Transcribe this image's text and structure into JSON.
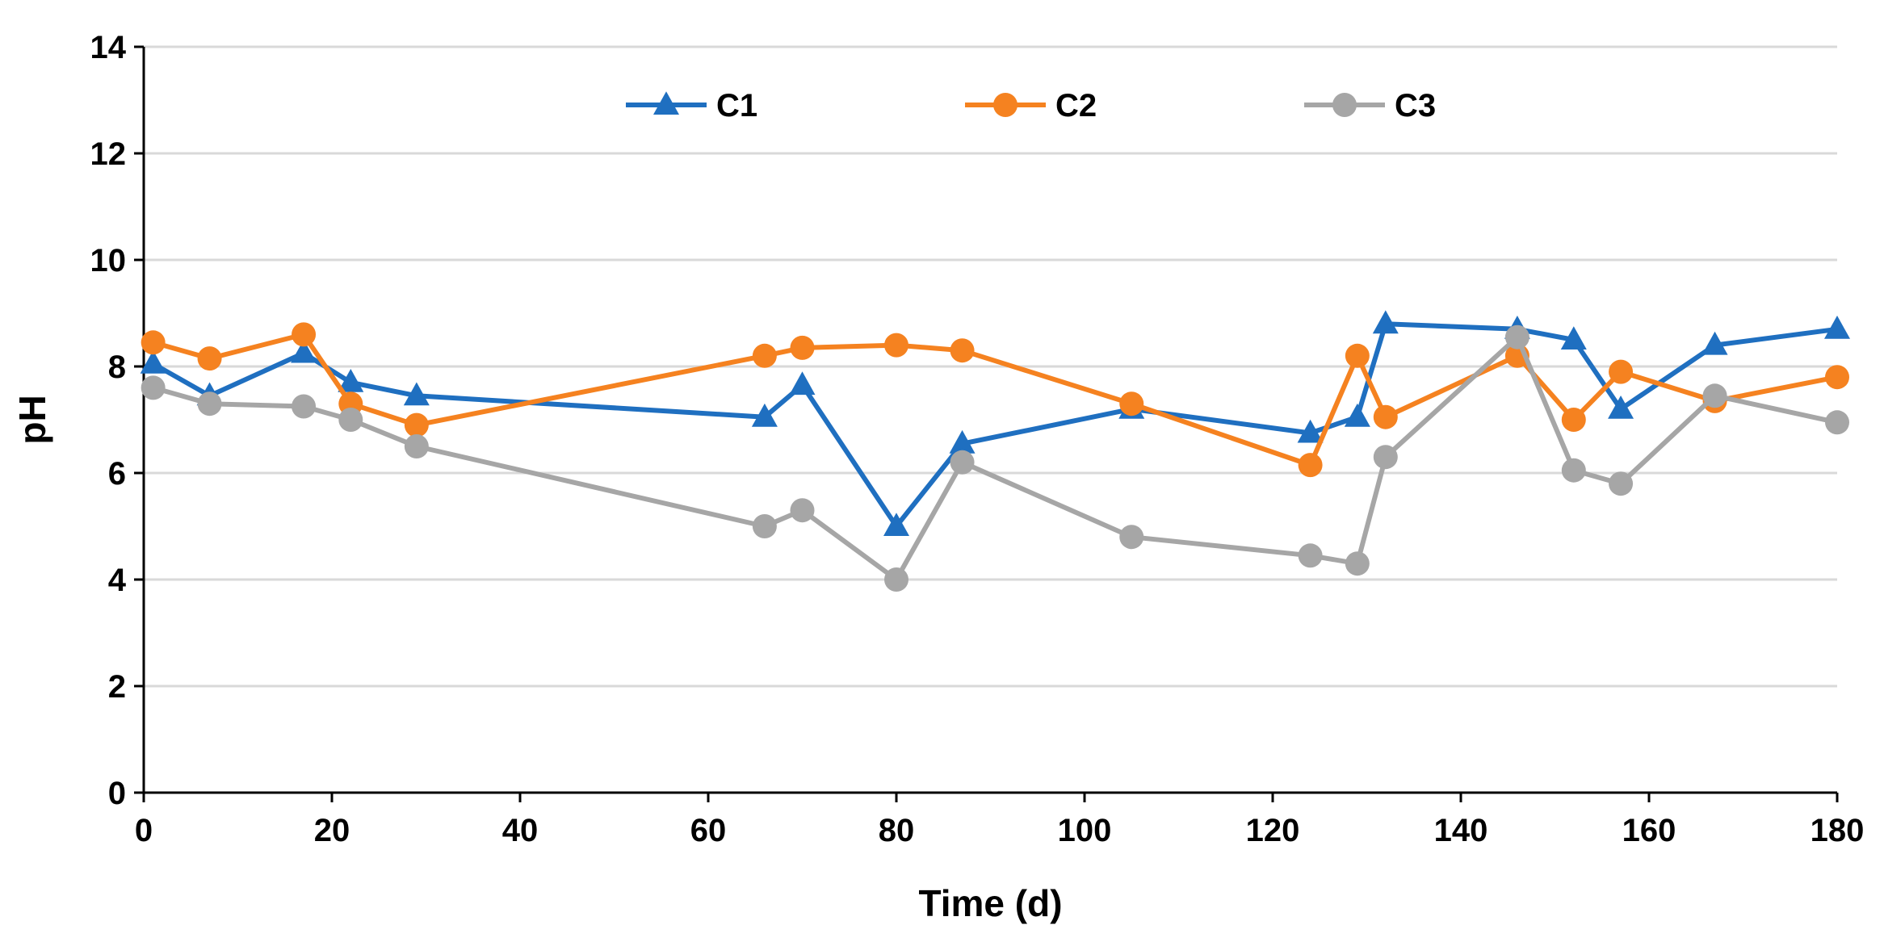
{
  "chart_data": {
    "type": "line",
    "title": "",
    "xlabel": "Time (d)",
    "ylabel": "pH",
    "xlim": [
      0,
      180
    ],
    "ylim": [
      0,
      14
    ],
    "xticks": [
      0,
      20,
      40,
      60,
      80,
      100,
      120,
      140,
      160,
      180
    ],
    "yticks": [
      0,
      2,
      4,
      6,
      8,
      10,
      12,
      14
    ],
    "grid": "horizontal",
    "legend_position": "top-center",
    "series": [
      {
        "name": "C1",
        "color": "#1F6FC0",
        "marker": "triangle",
        "points": [
          [
            1,
            8.05
          ],
          [
            7,
            7.45
          ],
          [
            17,
            8.25
          ],
          [
            22,
            7.7
          ],
          [
            29,
            7.45
          ],
          [
            66,
            7.05
          ],
          [
            70,
            7.65
          ],
          [
            80,
            5.0
          ],
          [
            87,
            6.55
          ],
          [
            105,
            7.2
          ],
          [
            124,
            6.75
          ],
          [
            129,
            7.05
          ],
          [
            132,
            8.8
          ],
          [
            146,
            8.7
          ],
          [
            152,
            8.5
          ],
          [
            157,
            7.2
          ],
          [
            167,
            8.4
          ],
          [
            180,
            8.7
          ]
        ]
      },
      {
        "name": "C2",
        "color": "#F58220",
        "marker": "circle",
        "points": [
          [
            1,
            8.45
          ],
          [
            7,
            8.15
          ],
          [
            17,
            8.6
          ],
          [
            22,
            7.3
          ],
          [
            29,
            6.9
          ],
          [
            66,
            8.2
          ],
          [
            70,
            8.35
          ],
          [
            80,
            8.4
          ],
          [
            87,
            8.3
          ],
          [
            105,
            7.3
          ],
          [
            124,
            6.15
          ],
          [
            129,
            8.2
          ],
          [
            132,
            7.05
          ],
          [
            146,
            8.2
          ],
          [
            152,
            7.0
          ],
          [
            157,
            7.9
          ],
          [
            167,
            7.35
          ],
          [
            180,
            7.8
          ]
        ]
      },
      {
        "name": "C3",
        "color": "#A6A6A6",
        "marker": "circle",
        "points": [
          [
            1,
            7.6
          ],
          [
            7,
            7.3
          ],
          [
            17,
            7.25
          ],
          [
            22,
            7.0
          ],
          [
            29,
            6.5
          ],
          [
            66,
            5.0
          ],
          [
            70,
            5.3
          ],
          [
            80,
            4.0
          ],
          [
            87,
            6.2
          ],
          [
            105,
            4.8
          ],
          [
            124,
            4.45
          ],
          [
            129,
            4.3
          ],
          [
            132,
            6.3
          ],
          [
            146,
            8.55
          ],
          [
            152,
            6.05
          ],
          [
            157,
            5.8
          ],
          [
            167,
            7.45
          ],
          [
            180,
            6.95
          ]
        ]
      }
    ]
  }
}
